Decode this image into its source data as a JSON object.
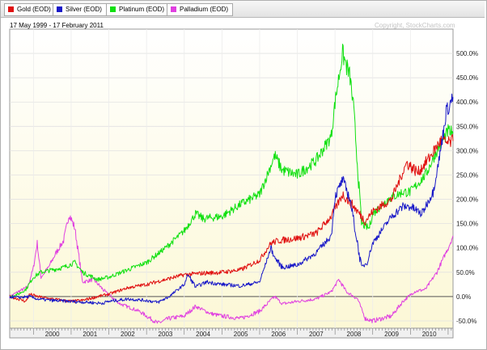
{
  "legend": [
    {
      "label": "Gold (EOD)",
      "color": "#e01010"
    },
    {
      "label": "Silver (EOD)",
      "color": "#1818c8"
    },
    {
      "label": "Platinum (EOD)",
      "color": "#10e010"
    },
    {
      "label": "Palladium (EOD)",
      "color": "#e040e0"
    }
  ],
  "date_range": "17 May 1999 - 17 February 2011",
  "copyright": "Copyright, StockCharts.com",
  "chart_data": {
    "type": "line",
    "x_unit": "year",
    "xlim": [
      1999.37,
      2011.13
    ],
    "ylim": [
      -65,
      550
    ],
    "y_ticks": [
      -50,
      0,
      50,
      100,
      150,
      200,
      250,
      300,
      350,
      400,
      450,
      500
    ],
    "y_tick_labels": [
      "-50.0%",
      "0.0%",
      "50.0%",
      "100.0%",
      "150.0%",
      "200.0%",
      "250.0%",
      "300.0%",
      "350.0%",
      "400.0%",
      "450.0%",
      "500.0%"
    ],
    "x_ticks": [
      2000,
      2001,
      2002,
      2003,
      2004,
      2005,
      2006,
      2007,
      2008,
      2009,
      2010
    ],
    "x_tick_labels": [
      "2000",
      "2001",
      "2002",
      "2003",
      "2004",
      "2005",
      "2006",
      "2007",
      "2008",
      "2009",
      "2010"
    ],
    "grid": true,
    "legend_position": "top",
    "series": [
      {
        "name": "Gold (EOD)",
        "color": "#e01010",
        "x": [
          1999.37,
          1999.6,
          1999.8,
          1999.9,
          2000.1,
          2000.5,
          2001.0,
          2001.3,
          2001.7,
          2002.0,
          2002.5,
          2003.0,
          2003.5,
          2004.0,
          2004.5,
          2005.0,
          2005.5,
          2006.0,
          2006.3,
          2006.5,
          2007.0,
          2007.5,
          2007.9,
          2008.2,
          2008.5,
          2008.8,
          2009.0,
          2009.5,
          2009.9,
          2010.2,
          2010.5,
          2010.8,
          2011.0,
          2011.13
        ],
        "y": [
          0,
          -5,
          -10,
          5,
          0,
          -5,
          -10,
          -8,
          0,
          5,
          18,
          25,
          35,
          45,
          48,
          50,
          55,
          75,
          110,
          115,
          120,
          130,
          165,
          210,
          185,
          155,
          175,
          200,
          275,
          255,
          285,
          320,
          315,
          320
        ]
      },
      {
        "name": "Silver (EOD)",
        "color": "#1818c8",
        "x": [
          1999.37,
          1999.6,
          1999.9,
          2000.1,
          2000.5,
          2001.0,
          2001.5,
          2001.8,
          2002.0,
          2002.5,
          2003.0,
          2003.3,
          2003.6,
          2004.0,
          2004.1,
          2004.3,
          2004.6,
          2005.0,
          2005.5,
          2006.0,
          2006.3,
          2006.4,
          2006.6,
          2007.0,
          2007.5,
          2007.9,
          2008.0,
          2008.2,
          2008.4,
          2008.7,
          2008.85,
          2009.0,
          2009.5,
          2009.8,
          2010.0,
          2010.3,
          2010.6,
          2010.8,
          2010.95,
          2011.13
        ],
        "y": [
          0,
          -2,
          0,
          -5,
          -8,
          -10,
          -12,
          -14,
          -10,
          -5,
          -8,
          -12,
          0,
          25,
          45,
          20,
          30,
          25,
          22,
          30,
          100,
          80,
          60,
          65,
          90,
          125,
          205,
          240,
          200,
          60,
          70,
          110,
          165,
          185,
          185,
          170,
          215,
          300,
          380,
          410
        ]
      },
      {
        "name": "Platinum (EOD)",
        "color": "#10e010",
        "x": [
          1999.37,
          1999.6,
          1999.8,
          2000.0,
          2000.2,
          2000.5,
          2000.8,
          2001.1,
          2001.3,
          2001.7,
          2002.0,
          2002.5,
          2003.0,
          2003.5,
          2004.0,
          2004.3,
          2004.5,
          2005.0,
          2005.5,
          2006.0,
          2006.4,
          2006.6,
          2007.0,
          2007.5,
          2007.9,
          2008.0,
          2008.2,
          2008.4,
          2008.5,
          2008.7,
          2008.9,
          2009.0,
          2009.4,
          2009.8,
          2010.0,
          2010.4,
          2010.7,
          2011.0,
          2011.13
        ],
        "y": [
          0,
          5,
          15,
          40,
          50,
          55,
          60,
          70,
          50,
          35,
          40,
          55,
          70,
          100,
          135,
          170,
          160,
          165,
          190,
          210,
          290,
          260,
          250,
          280,
          330,
          400,
          500,
          450,
          380,
          150,
          140,
          170,
          200,
          215,
          215,
          250,
          300,
          340,
          335
        ]
      },
      {
        "name": "Palladium (EOD)",
        "color": "#e040e0",
        "x": [
          1999.37,
          1999.6,
          1999.85,
          2000.0,
          2000.1,
          2000.2,
          2000.4,
          2000.6,
          2000.8,
          2000.95,
          2001.1,
          2001.3,
          2001.6,
          2001.9,
          2002.3,
          2002.8,
          2003.0,
          2003.3,
          2003.6,
          2004.0,
          2004.3,
          2004.7,
          2005.0,
          2005.5,
          2006.0,
          2006.4,
          2006.6,
          2007.0,
          2007.5,
          2007.9,
          2008.1,
          2008.3,
          2008.6,
          2008.8,
          2009.0,
          2009.5,
          2009.8,
          2010.1,
          2010.4,
          2010.7,
          2011.0,
          2011.13
        ],
        "y": [
          0,
          10,
          20,
          60,
          110,
          40,
          60,
          90,
          115,
          170,
          140,
          30,
          35,
          10,
          -15,
          -30,
          -40,
          -55,
          -45,
          -40,
          -20,
          -35,
          -40,
          -45,
          -30,
          0,
          -15,
          -10,
          -5,
          10,
          35,
          10,
          -5,
          -45,
          -50,
          -40,
          -10,
          10,
          15,
          50,
          100,
          125
        ]
      }
    ]
  }
}
